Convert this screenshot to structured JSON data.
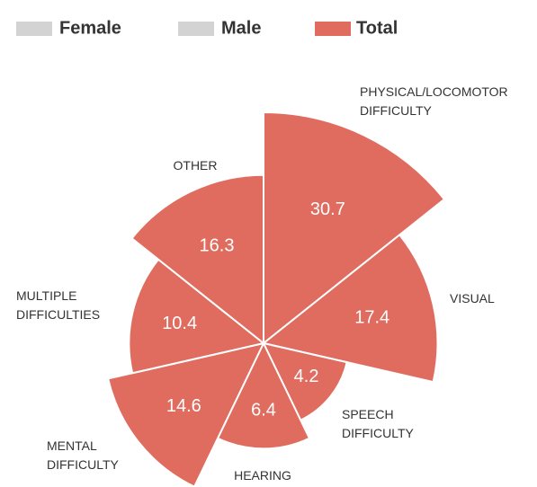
{
  "chart_data": {
    "type": "polar-area",
    "legend": [
      {
        "name": "Female",
        "color": "#d3d3d3"
      },
      {
        "name": "Male",
        "color": "#d3d3d3"
      },
      {
        "name": "Total",
        "color": "#e06b5f"
      }
    ],
    "categories": [
      [
        "PHYSICAL/LOCOMOTOR",
        "DIFFICULTY"
      ],
      [
        "VISUAL"
      ],
      [
        "SPEECH",
        "DIFFICULTY"
      ],
      [
        "HEARING"
      ],
      [
        "MENTAL",
        "DIFFICULTY"
      ],
      [
        "MULTIPLE",
        "DIFFICULTIES"
      ],
      [
        "OTHER"
      ]
    ],
    "values": [
      30.7,
      17.4,
      4.2,
      6.4,
      14.6,
      10.4,
      16.3
    ],
    "color": "#e06b5f"
  }
}
